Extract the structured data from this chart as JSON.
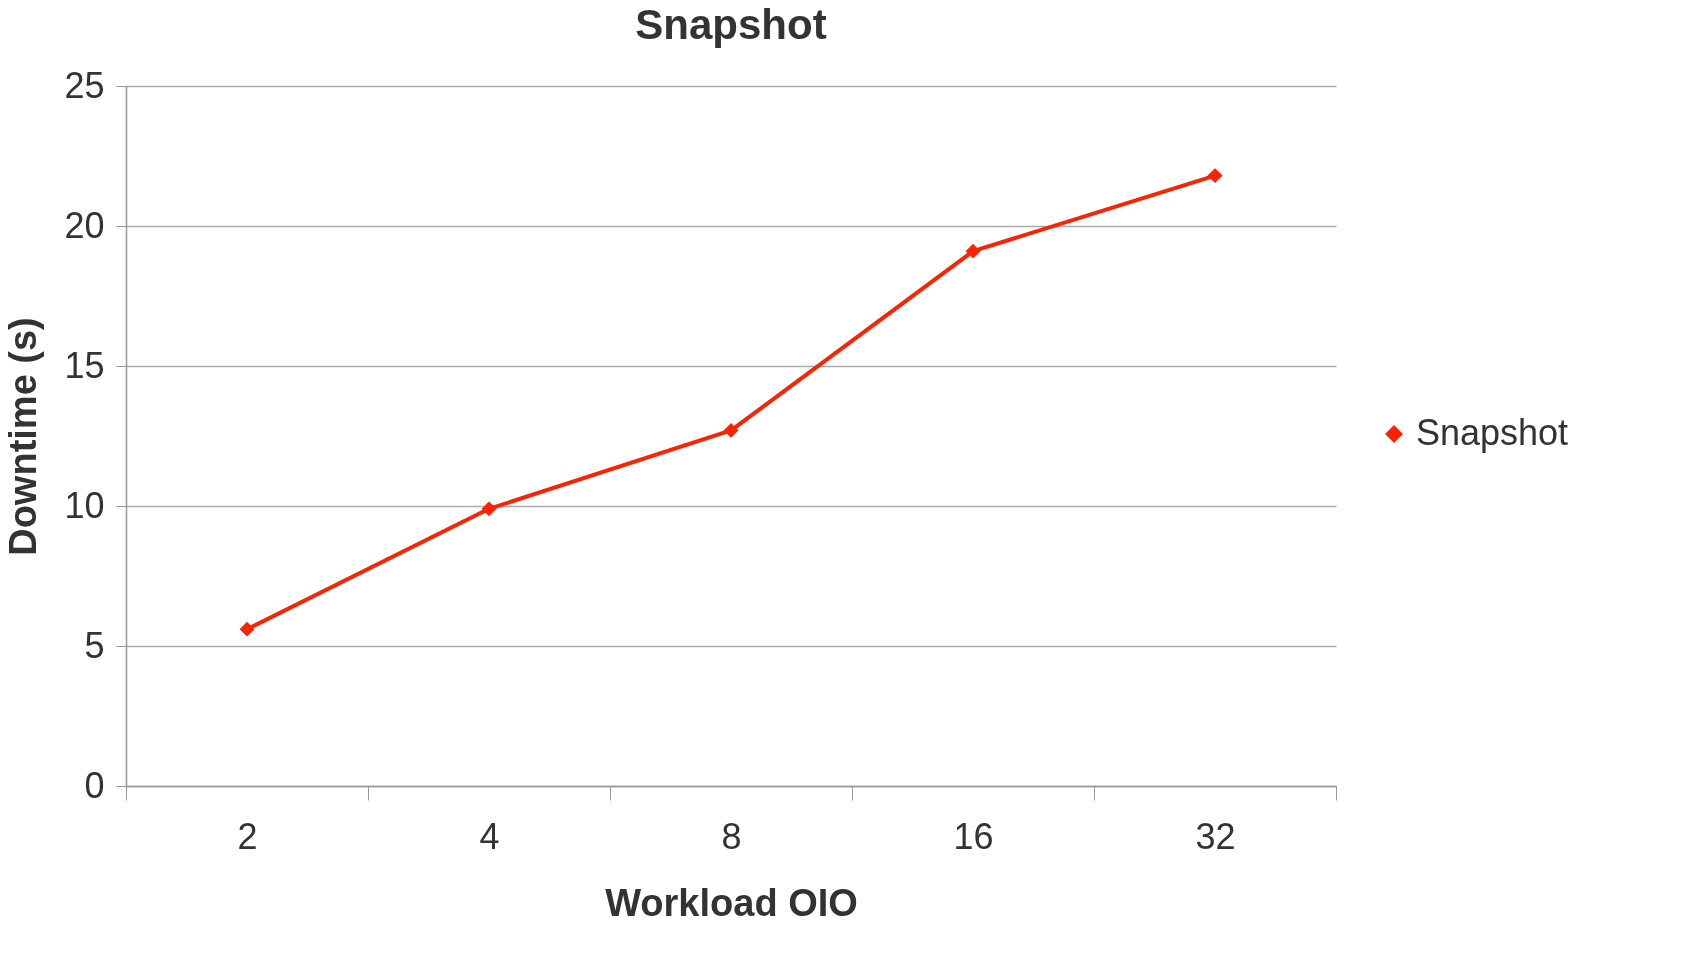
{
  "chart_data": {
    "type": "line",
    "title": "Snapshot",
    "xlabel": "Workload OIO",
    "ylabel": "Downtime (s)",
    "categories": [
      "2",
      "4",
      "8",
      "16",
      "32"
    ],
    "series": [
      {
        "name": "Snapshot",
        "color": "#ff2200",
        "values": [
          5.6,
          9.9,
          12.7,
          19.1,
          21.8
        ]
      }
    ],
    "ylim": [
      0,
      25
    ],
    "yticks": [
      0,
      5,
      10,
      15,
      20,
      25
    ],
    "grid": "y",
    "legend": "right",
    "marker": "diamond",
    "line_style": "solid"
  }
}
